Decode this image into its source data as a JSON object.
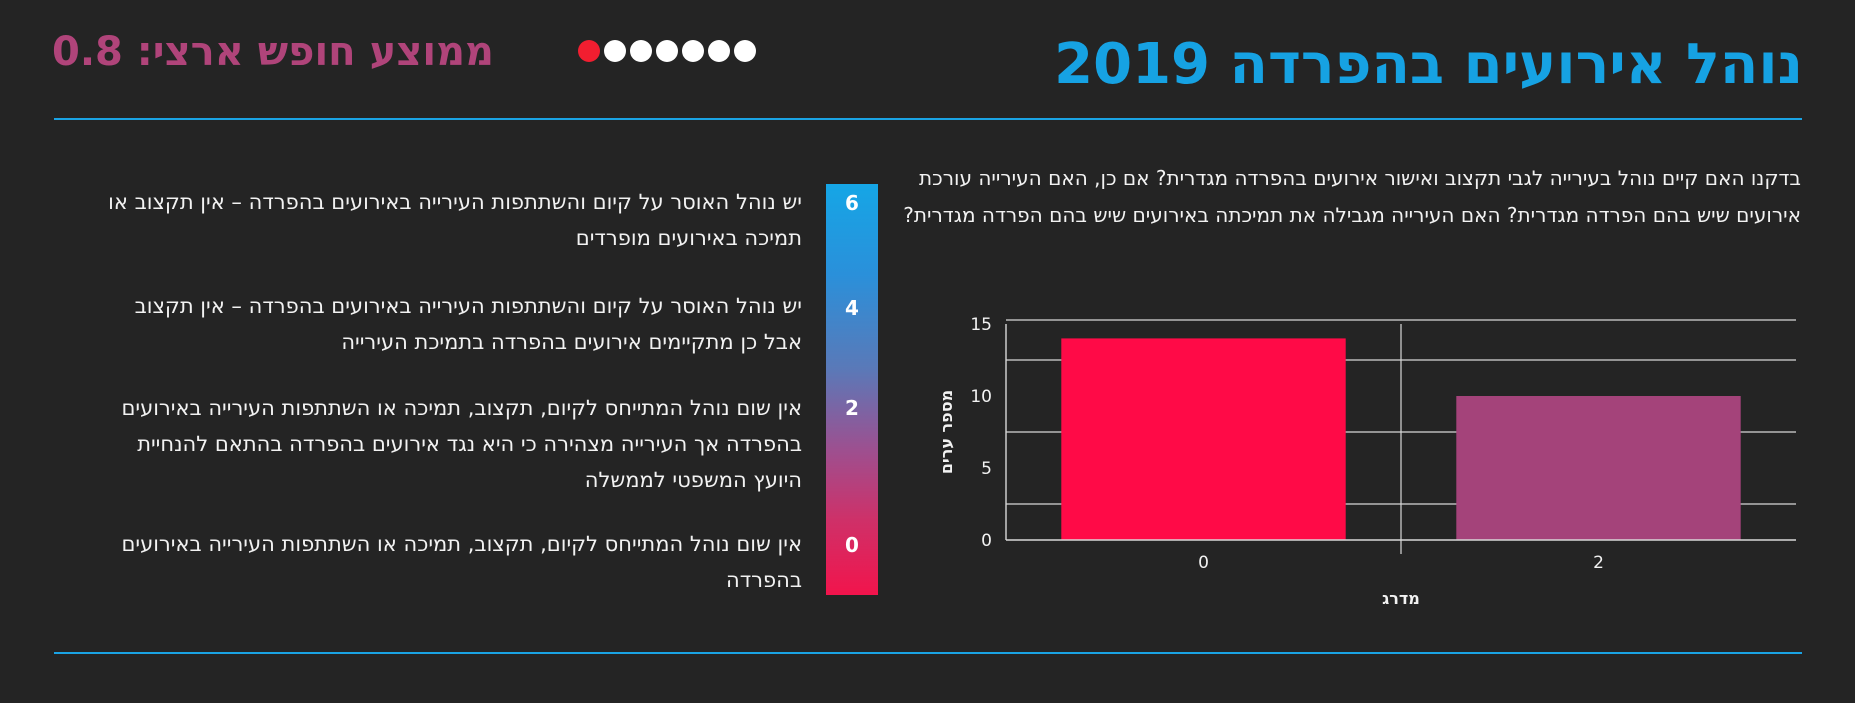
{
  "header": {
    "title": "נוהל אירועים בהפרדה 2019",
    "average_label": "ממוצע חופש ארצי: 0.8",
    "dots_total": 7,
    "dots_active": 1
  },
  "question": "בדקנו האם קיים נוהל בעירייה לגבי תקצוב ואישור אירועים בהפרדה מגדרית? אם כן, האם העירייה עורכת אירועים שיש בהם הפרדה מגדרית? האם העירייה מגבילה את תמיכתה באירועים שיש בהם הפרדה מגדרית?",
  "scale": {
    "levels": [
      {
        "value": "6",
        "text": "יש נוהל האוסר על קיום והשתתפות העירייה באירועים בהפרדה – אין תקצוב או תמיכה באירועים מופרדים"
      },
      {
        "value": "4",
        "text": "יש נוהל האוסר על קיום והשתתפות העירייה באירועים בהפרדה – אין תקצוב אבל כן מתקיימים אירועים בהפרדה בתמיכת העירייה"
      },
      {
        "value": "2",
        "text": "אין שום נוהל המתייחס לקיום, תקצוב, תמיכה או השתתפות העירייה באירועים בהפרדה אך העירייה מצהירה כי היא נגד אירועים בהפרדה בהתאם להנחיית היועץ המשפטי לממשלה"
      },
      {
        "value": "0",
        "text": "אין שום נוהל המתייחס לקיום, תקצוב, תמיכה או השתתפות העירייה באירועים בהפרדה"
      }
    ]
  },
  "chart_data": {
    "type": "bar",
    "categories": [
      "0",
      "2"
    ],
    "values": [
      14,
      10
    ],
    "colors": [
      "#ff0a47",
      "#a4437a"
    ],
    "xlabel": "מדרג",
    "ylabel": "מספר ערים",
    "yticks": [
      0,
      5,
      10,
      15
    ],
    "ylim": [
      0,
      15
    ],
    "grid": true
  },
  "colors": {
    "title": "#16a2e3",
    "average": "#b0447a",
    "rule": "#1aa3e4",
    "active_dot": "#f21e30"
  }
}
